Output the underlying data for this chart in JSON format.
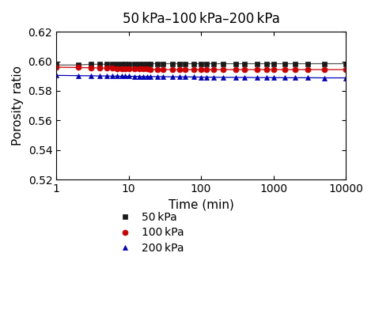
{
  "title": "50 kPa–100 kPa–200 kPa",
  "xlabel": "Time (min)",
  "ylabel": "Porosity ratio",
  "xlim": [
    1,
    10000
  ],
  "ylim": [
    0.52,
    0.62
  ],
  "yticks": [
    0.52,
    0.54,
    0.56,
    0.58,
    0.6,
    0.62
  ],
  "xticks": [
    1,
    10,
    100,
    1000,
    10000
  ],
  "series": [
    {
      "label": "50 kPa",
      "color": "#1a1a1a",
      "line_color": "#555555",
      "marker": "s",
      "markersize": 5,
      "x": [
        1,
        2,
        3,
        4,
        5,
        6,
        7,
        8,
        9,
        10,
        12,
        14,
        16,
        18,
        20,
        25,
        30,
        40,
        50,
        60,
        80,
        100,
        120,
        150,
        200,
        300,
        400,
        600,
        800,
        1000,
        1440,
        2000,
        3000,
        5000,
        10000
      ],
      "y": [
        0.5975,
        0.5975,
        0.598,
        0.598,
        0.598,
        0.5982,
        0.5982,
        0.5982,
        0.5983,
        0.5983,
        0.5983,
        0.5984,
        0.5984,
        0.5984,
        0.5984,
        0.5984,
        0.5984,
        0.5984,
        0.5984,
        0.5984,
        0.5984,
        0.5984,
        0.5984,
        0.5984,
        0.5984,
        0.5984,
        0.5984,
        0.5984,
        0.5984,
        0.5984,
        0.5984,
        0.5984,
        0.5984,
        0.5984,
        0.5984
      ]
    },
    {
      "label": "100 kPa",
      "color": "#cc0000",
      "line_color": "#cc0000",
      "marker": "o",
      "markersize": 5,
      "x": [
        1,
        2,
        3,
        4,
        5,
        6,
        7,
        8,
        9,
        10,
        12,
        14,
        16,
        18,
        20,
        25,
        30,
        40,
        50,
        60,
        80,
        100,
        120,
        150,
        200,
        300,
        400,
        600,
        800,
        1000,
        1440,
        2000,
        3000,
        5000,
        10000
      ],
      "y": [
        0.596,
        0.5958,
        0.5956,
        0.5955,
        0.5954,
        0.5953,
        0.5952,
        0.5951,
        0.595,
        0.595,
        0.5949,
        0.5948,
        0.5947,
        0.5947,
        0.5946,
        0.5945,
        0.5945,
        0.5944,
        0.5944,
        0.5944,
        0.5944,
        0.5944,
        0.5944,
        0.5944,
        0.5944,
        0.5944,
        0.5944,
        0.5944,
        0.5944,
        0.5944,
        0.5944,
        0.5944,
        0.5944,
        0.5944,
        0.5944
      ]
    },
    {
      "label": "200 kPa",
      "color": "#0000bb",
      "line_color": "#0000bb",
      "marker": "^",
      "markersize": 5,
      "x": [
        1,
        2,
        3,
        4,
        5,
        6,
        7,
        8,
        9,
        10,
        12,
        14,
        16,
        18,
        20,
        25,
        30,
        40,
        50,
        60,
        80,
        100,
        120,
        150,
        200,
        300,
        400,
        600,
        800,
        1000,
        1440,
        2000,
        3000,
        5000,
        10000
      ],
      "y": [
        0.5905,
        0.5903,
        0.5902,
        0.5901,
        0.5901,
        0.59,
        0.59,
        0.5899,
        0.5899,
        0.5899,
        0.5898,
        0.5898,
        0.5897,
        0.5897,
        0.5897,
        0.5896,
        0.5896,
        0.5895,
        0.5895,
        0.5895,
        0.5894,
        0.5893,
        0.5893,
        0.5892,
        0.5892,
        0.5891,
        0.5891,
        0.589,
        0.589,
        0.589,
        0.5889,
        0.5889,
        0.5889,
        0.5888,
        0.5888
      ]
    }
  ],
  "background_color": "#ffffff",
  "title_fontsize": 12,
  "label_fontsize": 11,
  "tick_fontsize": 10,
  "legend_fontsize": 10
}
